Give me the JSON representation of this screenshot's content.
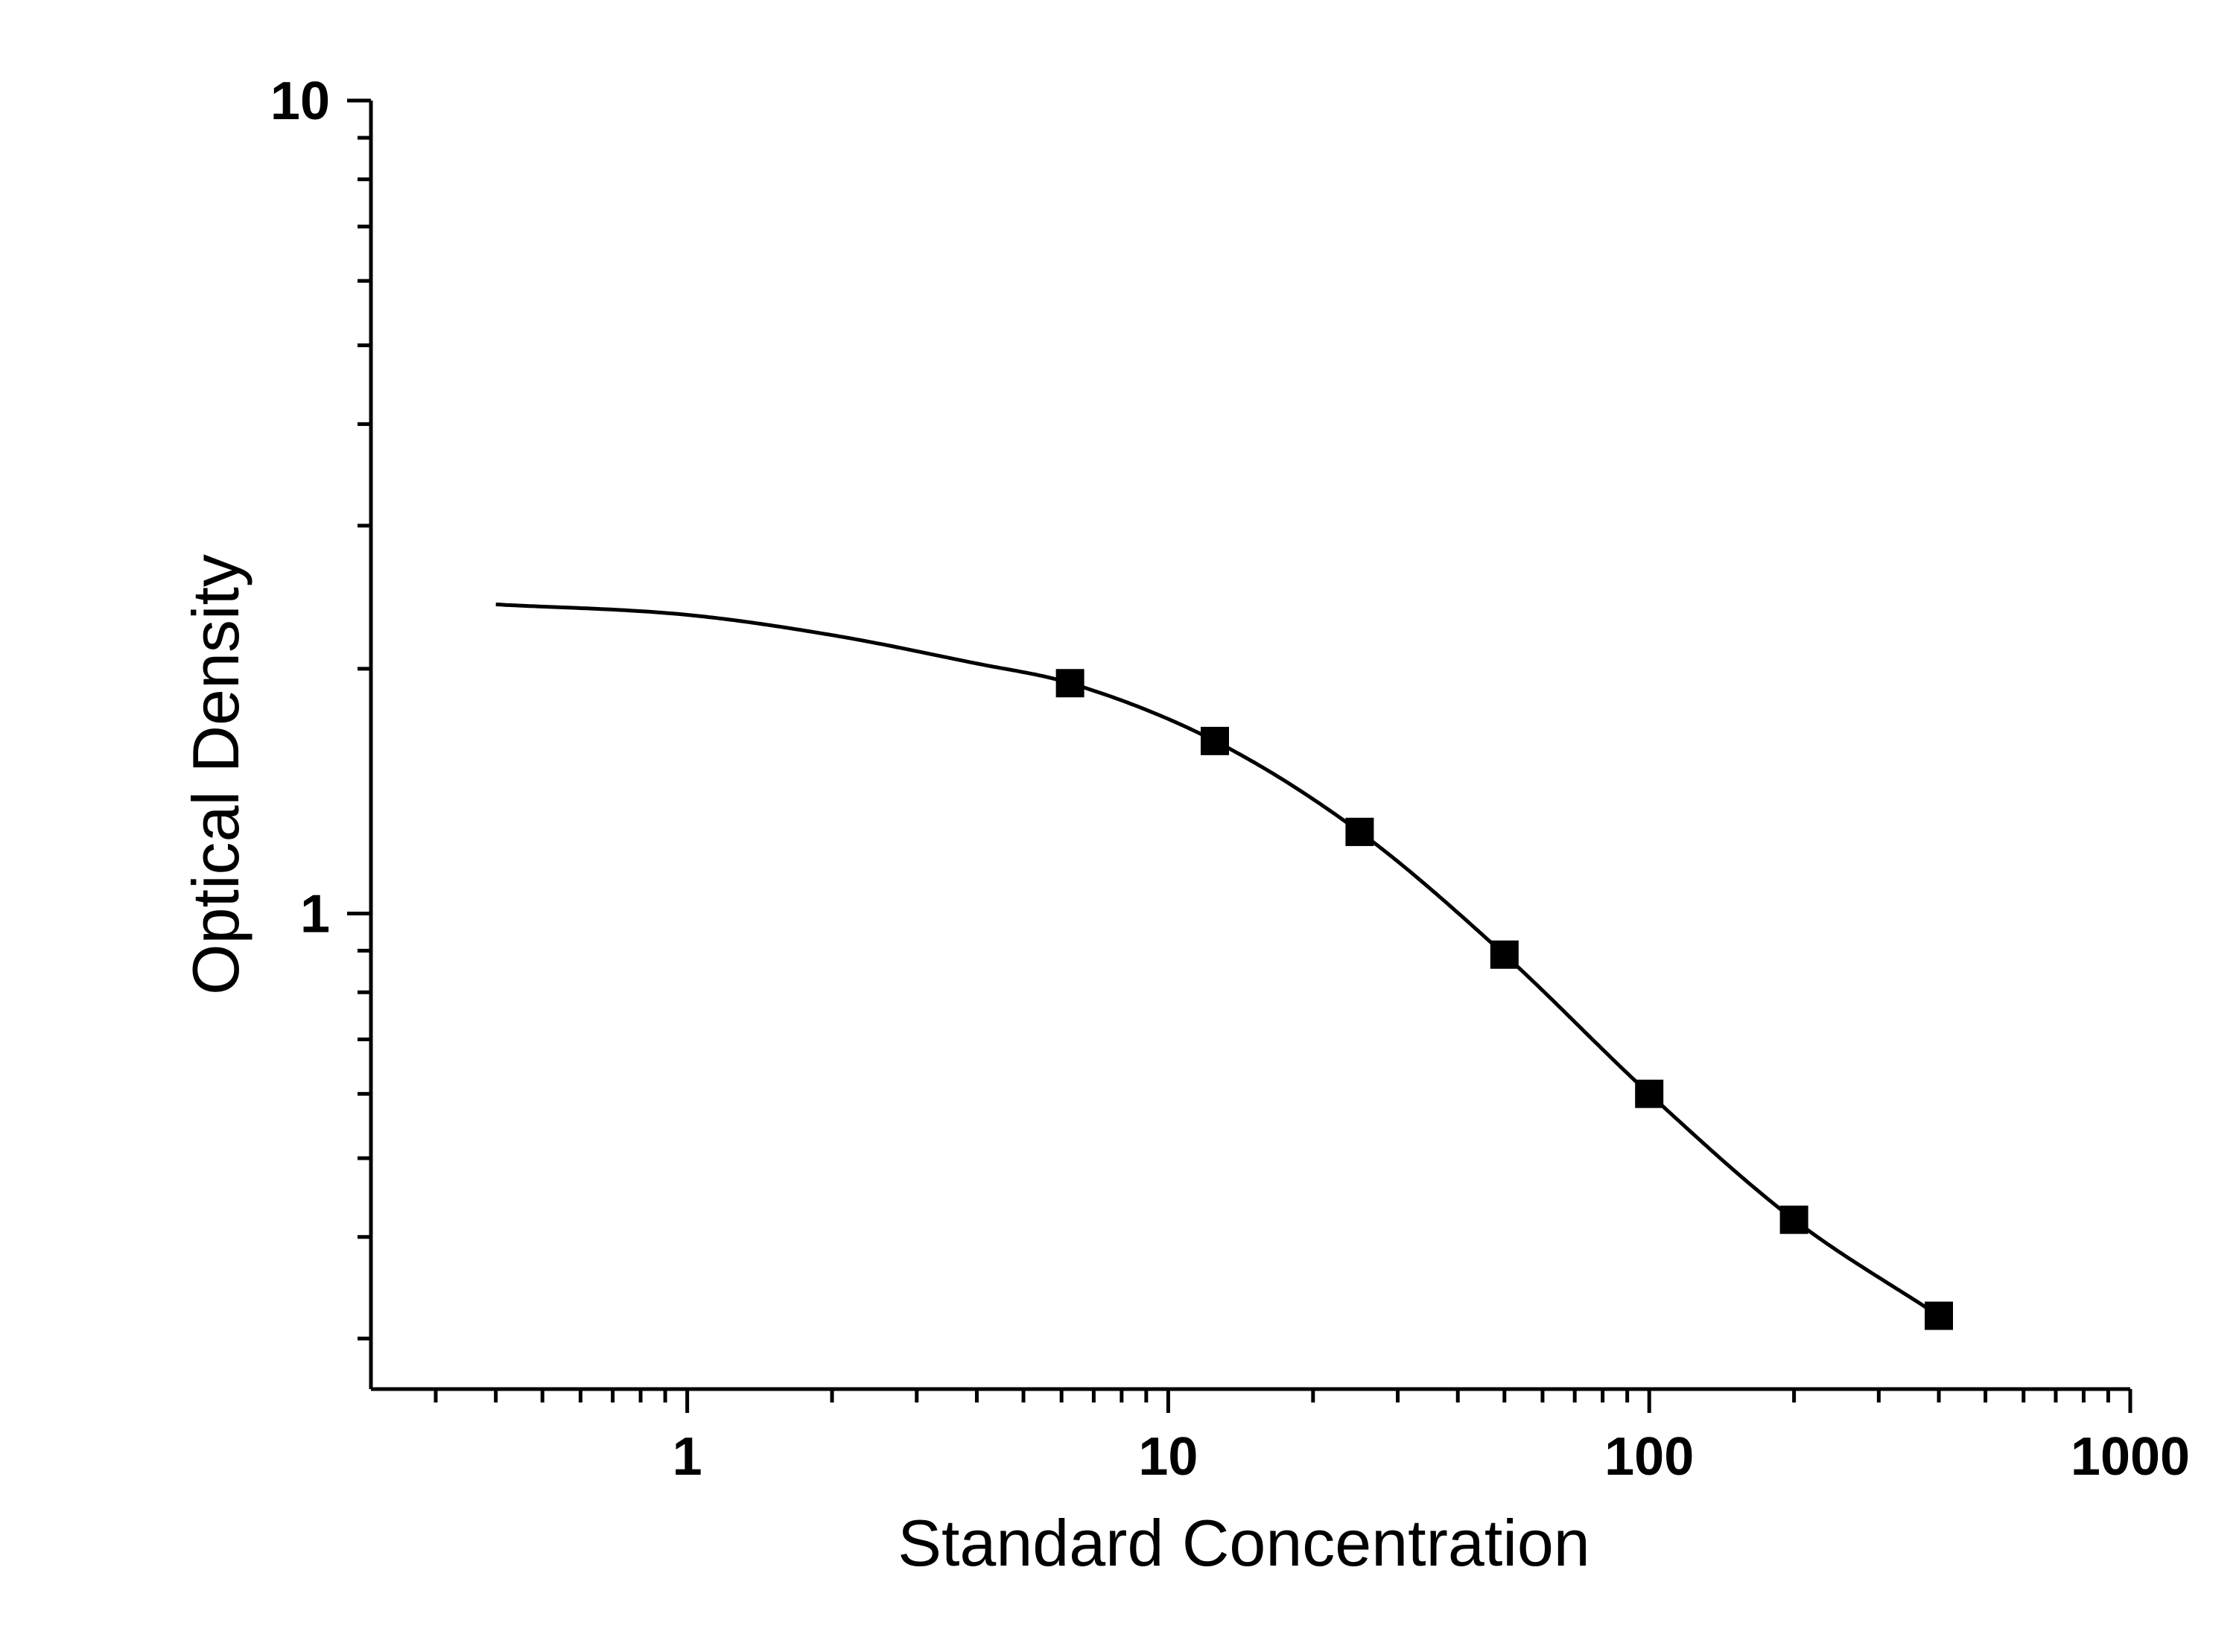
{
  "chart_data": {
    "type": "scatter",
    "xlabel": "Standard Concentration",
    "ylabel": "Optical Density",
    "xscale": "log",
    "yscale": "log",
    "xlim": [
      0.22,
      1000
    ],
    "ylim": [
      0.26,
      10
    ],
    "x_tick_labels": [
      "1",
      "10",
      "100",
      "1000"
    ],
    "y_tick_labels": [
      "1",
      "10"
    ],
    "grid": false,
    "legend": "none",
    "colors": {
      "line": "#000000",
      "marker": "#000000"
    },
    "series": [
      {
        "marker": "square",
        "x": [
          6.25,
          12.5,
          25,
          50,
          100,
          200,
          400
        ],
        "y": [
          1.92,
          1.63,
          1.26,
          0.89,
          0.6,
          0.42,
          0.32
        ]
      }
    ],
    "fit_curve": {
      "x": [
        0.4,
        1,
        2,
        4,
        6.25,
        12.5,
        25,
        50,
        100,
        200,
        400
      ],
      "y": [
        2.4,
        2.33,
        2.2,
        2.03,
        1.92,
        1.63,
        1.26,
        0.89,
        0.6,
        0.42,
        0.32
      ]
    }
  }
}
